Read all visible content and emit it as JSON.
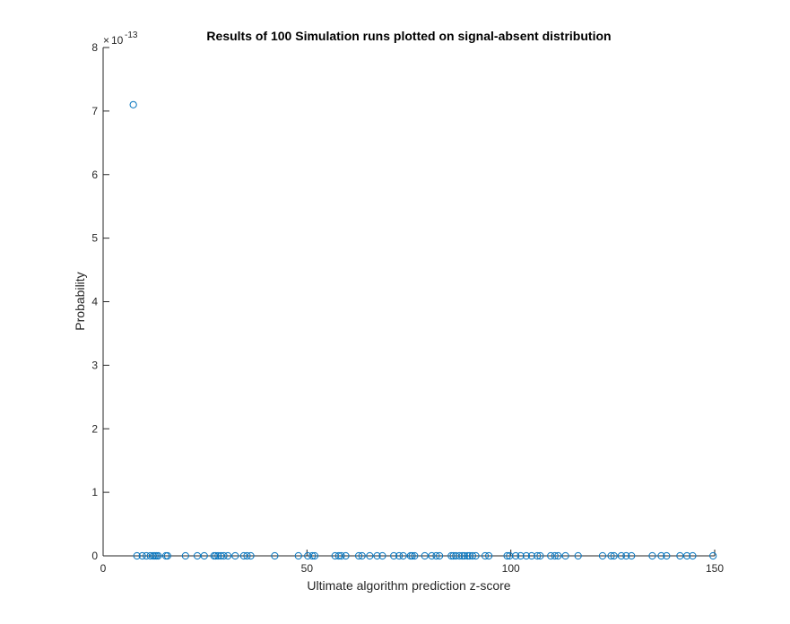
{
  "chart_data": {
    "type": "scatter",
    "title": "Results of 100 Simulation runs plotted on signal-absent distribution",
    "xlabel": "Ultimate algorithm prediction z-score",
    "ylabel": "Probability",
    "xlim": [
      0,
      150
    ],
    "ylim": [
      0,
      8
    ],
    "y_multiplier": "10",
    "y_multiplier_exponent": "-13",
    "xticks": [
      0,
      50,
      100,
      150
    ],
    "yticks": [
      0,
      1,
      2,
      3,
      4,
      5,
      6,
      7,
      8
    ],
    "grid": false,
    "marker": "circle",
    "color": "#0072BD",
    "x": [
      7.4,
      8.3,
      9.6,
      10.6,
      11.6,
      12.3,
      12.7,
      13.1,
      13.5,
      15.4,
      15.8,
      20.2,
      23.1,
      24.8,
      27.2,
      27.6,
      28.2,
      28.9,
      29.6,
      30.6,
      32.4,
      34.5,
      35.3,
      36.2,
      42.1,
      47.9,
      50.2,
      51.3,
      51.9,
      56.9,
      57.8,
      58.4,
      59.5,
      62.7,
      63.5,
      65.4,
      67.2,
      68.5,
      71.3,
      72.6,
      73.6,
      75.4,
      75.8,
      76.4,
      78.9,
      80.6,
      81.7,
      82.5,
      85.4,
      85.9,
      86.5,
      87.4,
      88.1,
      88.6,
      89.4,
      89.9,
      90.6,
      91.4,
      93.7,
      94.6,
      99.1,
      99.7,
      101.2,
      102.4,
      103.8,
      105.1,
      106.5,
      107.2,
      109.8,
      110.8,
      111.6,
      113.4,
      116.5,
      122.5,
      124.6,
      125.3,
      127.1,
      128.3,
      129.6,
      134.7,
      136.9,
      138.2,
      141.5,
      143.2,
      144.6,
      149.6
    ],
    "y": [
      7.1,
      0,
      0,
      0,
      0,
      0,
      0,
      0,
      0,
      0,
      0,
      0,
      0,
      0,
      0,
      0,
      0,
      0,
      0,
      0,
      0,
      0,
      0,
      0,
      0,
      0,
      0,
      0,
      0,
      0,
      0,
      0,
      0,
      0,
      0,
      0,
      0,
      0,
      0,
      0,
      0,
      0,
      0,
      0,
      0,
      0,
      0,
      0,
      0,
      0,
      0,
      0,
      0,
      0,
      0,
      0,
      0,
      0,
      0,
      0,
      0,
      0,
      0,
      0,
      0,
      0,
      0,
      0,
      0,
      0,
      0,
      0,
      0,
      0,
      0,
      0,
      0,
      0,
      0,
      0,
      0,
      0,
      0,
      0,
      0,
      0
    ]
  }
}
